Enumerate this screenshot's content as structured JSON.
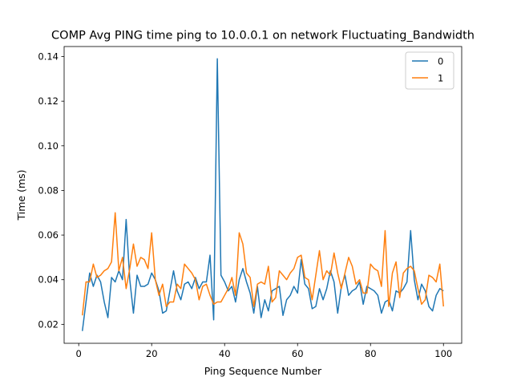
{
  "chart_data": {
    "type": "line",
    "title": "COMP Avg PING time ping to 10.0.0.1 on network Fluctuating_Bandwidth",
    "xlabel": "Ping Sequence Number",
    "ylabel": "Time (ms)",
    "xlim": [
      -4,
      105
    ],
    "ylim": [
      0.0115,
      0.1445
    ],
    "xticks": [
      0,
      20,
      40,
      60,
      80,
      100
    ],
    "xtick_labels": [
      "0",
      "20",
      "40",
      "60",
      "80",
      "100"
    ],
    "yticks": [
      0.02,
      0.04,
      0.06,
      0.08,
      0.1,
      0.12,
      0.14
    ],
    "ytick_labels": [
      "0.02",
      "0.04",
      "0.06",
      "0.08",
      "0.10",
      "0.12",
      "0.14"
    ],
    "grid": false,
    "legend_position": "top-right",
    "x": [
      1,
      2,
      3,
      4,
      5,
      6,
      7,
      8,
      9,
      10,
      11,
      12,
      13,
      14,
      15,
      16,
      17,
      18,
      19,
      20,
      21,
      22,
      23,
      24,
      25,
      26,
      27,
      28,
      29,
      30,
      31,
      32,
      33,
      34,
      35,
      36,
      37,
      38,
      39,
      40,
      41,
      42,
      43,
      44,
      45,
      46,
      47,
      48,
      49,
      50,
      51,
      52,
      53,
      54,
      55,
      56,
      57,
      58,
      59,
      60,
      61,
      62,
      63,
      64,
      65,
      66,
      67,
      68,
      69,
      70,
      71,
      72,
      73,
      74,
      75,
      76,
      77,
      78,
      79,
      80,
      81,
      82,
      83,
      84,
      85,
      86,
      87,
      88,
      89,
      90,
      91,
      92,
      93,
      94,
      95,
      96,
      97,
      98,
      99,
      100
    ],
    "series": [
      {
        "name": "0",
        "color": "#1f77b4",
        "values": [
          0.017,
          0.03,
          0.043,
          0.037,
          0.042,
          0.039,
          0.03,
          0.023,
          0.041,
          0.039,
          0.044,
          0.04,
          0.067,
          0.04,
          0.025,
          0.042,
          0.037,
          0.037,
          0.038,
          0.043,
          0.04,
          0.035,
          0.025,
          0.026,
          0.035,
          0.044,
          0.035,
          0.031,
          0.038,
          0.039,
          0.036,
          0.041,
          0.036,
          0.039,
          0.039,
          0.051,
          0.022,
          0.139,
          0.042,
          0.039,
          0.035,
          0.037,
          0.03,
          0.04,
          0.045,
          0.039,
          0.034,
          0.025,
          0.037,
          0.023,
          0.031,
          0.026,
          0.035,
          0.036,
          0.037,
          0.024,
          0.031,
          0.033,
          0.037,
          0.034,
          0.049,
          0.038,
          0.036,
          0.027,
          0.028,
          0.036,
          0.031,
          0.036,
          0.044,
          0.039,
          0.025,
          0.037,
          0.042,
          0.033,
          0.035,
          0.036,
          0.039,
          0.029,
          0.037,
          0.036,
          0.035,
          0.033,
          0.025,
          0.03,
          0.031,
          0.026,
          0.035,
          0.034,
          0.036,
          0.039,
          0.062,
          0.04,
          0.031,
          0.038,
          0.035,
          0.028,
          0.026,
          0.033,
          0.036,
          0.035
        ]
      },
      {
        "name": "1",
        "color": "#ff7f0e",
        "values": [
          0.024,
          0.039,
          0.039,
          0.047,
          0.041,
          0.042,
          0.044,
          0.045,
          0.048,
          0.07,
          0.044,
          0.05,
          0.036,
          0.045,
          0.056,
          0.046,
          0.05,
          0.049,
          0.045,
          0.061,
          0.04,
          0.033,
          0.038,
          0.028,
          0.03,
          0.03,
          0.038,
          0.036,
          0.047,
          0.045,
          0.043,
          0.04,
          0.031,
          0.037,
          0.038,
          0.033,
          0.029,
          0.03,
          0.03,
          0.033,
          0.036,
          0.041,
          0.033,
          0.061,
          0.056,
          0.043,
          0.041,
          0.028,
          0.038,
          0.039,
          0.038,
          0.046,
          0.03,
          0.032,
          0.044,
          0.042,
          0.04,
          0.043,
          0.045,
          0.05,
          0.051,
          0.041,
          0.04,
          0.031,
          0.042,
          0.053,
          0.04,
          0.044,
          0.042,
          0.052,
          0.043,
          0.036,
          0.043,
          0.05,
          0.046,
          0.038,
          0.04,
          0.034,
          0.034,
          0.047,
          0.045,
          0.044,
          0.037,
          0.062,
          0.028,
          0.043,
          0.048,
          0.032,
          0.043,
          0.045,
          0.046,
          0.044,
          0.036,
          0.029,
          0.031,
          0.042,
          0.041,
          0.039,
          0.047,
          0.028
        ]
      }
    ]
  }
}
